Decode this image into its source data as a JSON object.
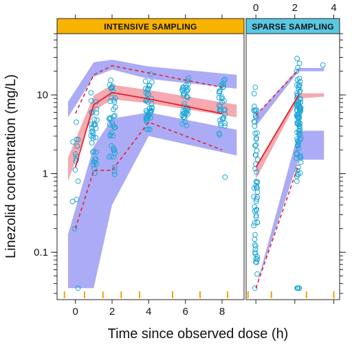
{
  "chart_data": {
    "type": "scatter",
    "ylabel": "Linezolid concentration  (mg/L)",
    "xlabel": "Time since observed dose (h)",
    "y_scale": "log",
    "ylim": [
      0.025,
      60
    ],
    "y_ticks": [
      {
        "value": 0.1,
        "label": "0.1"
      },
      {
        "value": 1,
        "label": "1"
      },
      {
        "value": 10,
        "label": "10"
      }
    ],
    "colors": {
      "observed": "#1ea6d6",
      "median_line": "#e3222a",
      "percentile_line": "#e3222a",
      "pi_median_band": "#f4a0a8",
      "pi_outer_band": "#9d9cf3",
      "strip_intensive": "#f8b200",
      "strip_sparse": "#5bc8e3",
      "rug": "#f0a400"
    },
    "panels": [
      {
        "title": "INTENSIVE SAMPLING",
        "xlim": [
          -1,
          9.2
        ],
        "x_ticks": [
          0,
          2,
          4,
          6,
          8
        ],
        "x_tick_side": "bottom",
        "x_top_ticks": [
          0,
          2,
          4,
          6,
          8
        ],
        "rug_x": [
          -0.6,
          0.5,
          1.5,
          2.5,
          3.5,
          5.3,
          6.8,
          8.3
        ],
        "pi_median_band": [
          {
            "x": -0.4,
            "lo": 0.8,
            "hi": 1.6
          },
          {
            "x": 1,
            "lo": 6.2,
            "hi": 9.8
          },
          {
            "x": 2,
            "lo": 8.8,
            "hi": 13.5
          },
          {
            "x": 4,
            "lo": 7.8,
            "hi": 11.5
          },
          {
            "x": 8.8,
            "lo": 5.2,
            "hi": 7.5
          }
        ],
        "pi_upper_band": [
          {
            "x": -0.4,
            "lo": 5.2,
            "hi": 8.2
          },
          {
            "x": 1,
            "lo": 17,
            "hi": 26
          },
          {
            "x": 2,
            "lo": 21,
            "hi": 28
          },
          {
            "x": 4,
            "lo": 16,
            "hi": 23
          },
          {
            "x": 8.8,
            "lo": 12,
            "hi": 18
          }
        ],
        "pi_lower_band": [
          {
            "x": -0.4,
            "lo": 0.035,
            "hi": 0.17
          },
          {
            "x": 1,
            "lo": 0.035,
            "hi": 2.2
          },
          {
            "x": 2,
            "lo": 0.4,
            "hi": 5.0
          },
          {
            "x": 4,
            "lo": 3.0,
            "hi": 6.0
          },
          {
            "x": 8.8,
            "lo": 1.7,
            "hi": 3.6
          }
        ],
        "observed_median": {
          "x": [
            0,
            1,
            2,
            4,
            8
          ],
          "y": [
            1.2,
            7.5,
            10.7,
            8.9,
            5.8
          ]
        },
        "observed_p95": {
          "x": [
            0,
            1,
            2,
            4,
            8
          ],
          "y": [
            5.8,
            18,
            23.5,
            19,
            12.5
          ]
        },
        "observed_p5": {
          "x": [
            0,
            1,
            2,
            4,
            8
          ],
          "y": [
            0.2,
            1.1,
            1.1,
            4.5,
            2.0
          ]
        }
      },
      {
        "title": "SPARSE SAMPLING",
        "xlim": [
          -0.5,
          4.3
        ],
        "x_ticks": [
          0,
          2,
          4
        ],
        "x_tick_side": "top",
        "x_bottom_ticks": [
          0,
          2,
          4
        ],
        "rug_x": [
          -0.4,
          0.8,
          2.6,
          4.0
        ],
        "pi_median_band": [
          {
            "x": 0,
            "lo": 0.85,
            "hi": 1.25
          },
          {
            "x": 2.2,
            "lo": 9.0,
            "hi": 10.5
          },
          {
            "x": 3.5,
            "lo": 9.5,
            "hi": 10.5
          }
        ],
        "pi_upper_band": [
          {
            "x": 0,
            "lo": 4.0,
            "hi": 5.5
          },
          {
            "x": 2.2,
            "lo": 20,
            "hi": 22
          },
          {
            "x": 3.5,
            "lo": 20,
            "hi": 22
          }
        ],
        "pi_lower_band": [
          {
            "x": 0,
            "lo": 0.035,
            "hi": 0.035
          },
          {
            "x": 2.2,
            "lo": 1.5,
            "hi": 3.5
          },
          {
            "x": 3.5,
            "lo": 1.5,
            "hi": 3.5
          }
        ],
        "observed_median": {
          "x": [
            0,
            2.2
          ],
          "y": [
            1.2,
            10
          ]
        },
        "observed_p95": {
          "x": [
            0,
            2.2
          ],
          "y": [
            5.5,
            21
          ]
        },
        "observed_p5": {
          "x": [
            0,
            2.2
          ],
          "y": [
            0.035,
            1.3
          ]
        }
      }
    ],
    "points": [
      {
        "panel": 0,
        "x": 0,
        "lo": 0.2,
        "hi": 7.5,
        "n": 14,
        "extra": [
          0.035
        ]
      },
      {
        "panel": 0,
        "x": 1,
        "lo": 0.6,
        "hi": 18,
        "n": 34,
        "extra": []
      },
      {
        "panel": 0,
        "x": 2,
        "lo": 0.8,
        "hi": 24,
        "n": 40,
        "extra": []
      },
      {
        "panel": 0,
        "x": 4,
        "lo": 2.8,
        "hi": 20,
        "n": 42,
        "extra": []
      },
      {
        "panel": 0,
        "x": 6,
        "lo": 2.5,
        "hi": 19,
        "n": 38,
        "extra": []
      },
      {
        "panel": 0,
        "x": 8,
        "lo": 2.5,
        "hi": 18,
        "n": 34,
        "extra": [
          0.9
        ]
      },
      {
        "panel": 1,
        "x": 0,
        "lo": 0.035,
        "hi": 18,
        "n": 60,
        "extra": [
          0.035,
          0.1
        ]
      },
      {
        "panel": 1,
        "x": 2.2,
        "lo": 0.6,
        "hi": 32,
        "n": 90,
        "extra": [
          0.035,
          0.035,
          0.035,
          0.035
        ]
      },
      {
        "panel": 1,
        "x": 3.5,
        "lo": 24,
        "hi": 24,
        "n": 1,
        "extra": []
      }
    ]
  }
}
